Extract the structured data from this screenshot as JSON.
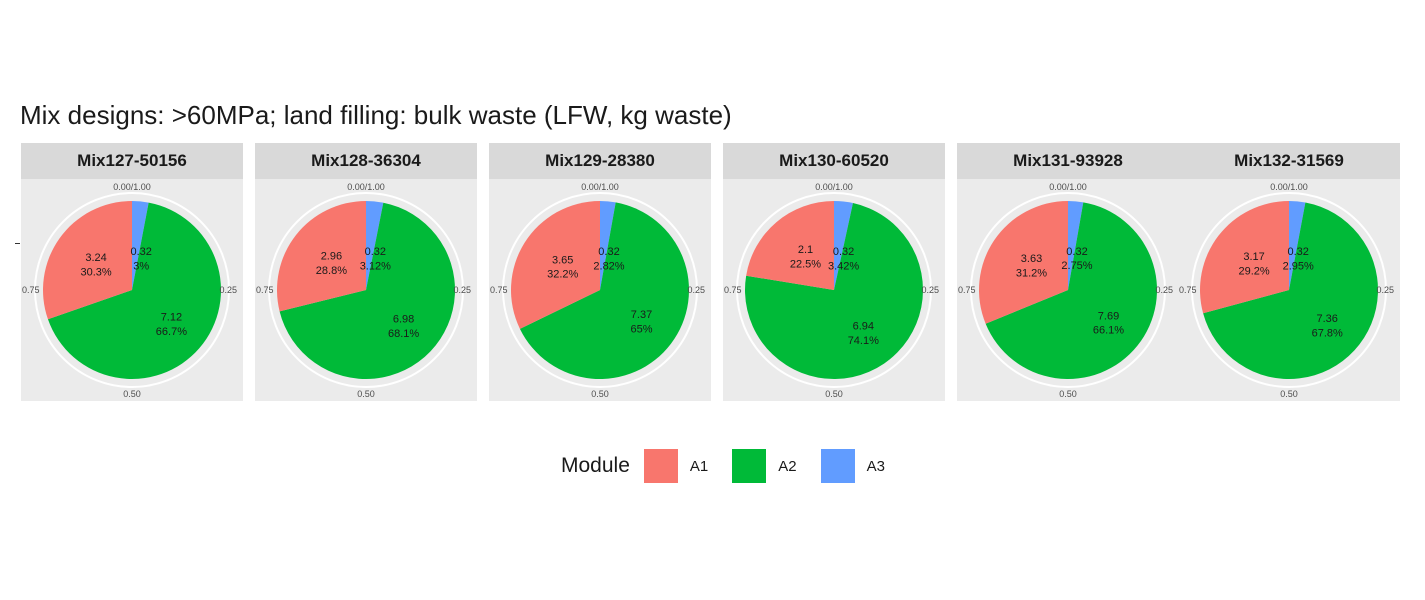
{
  "title": "Mix designs: >60MPa; land filling: bulk waste (LFW, kg waste)",
  "legend": {
    "title": "Module",
    "items": [
      {
        "label": "A1",
        "color": "#F8766D"
      },
      {
        "label": "A2",
        "color": "#00BA38"
      },
      {
        "label": "A3",
        "color": "#619CFF"
      }
    ]
  },
  "chart_data": {
    "type": "pie",
    "theta_ticks": [
      "0.00/1.00",
      "0.25",
      "0.50",
      "0.75"
    ],
    "panel_background": "#EBEBEB",
    "strip_background": "#D9D9D9",
    "facets": [
      {
        "name": "Mix127-50156",
        "slices": [
          {
            "module": "A1",
            "value": 3.24,
            "label_value": "3.24",
            "label_pct": "30.3%"
          },
          {
            "module": "A2",
            "value": 7.12,
            "label_value": "7.12",
            "label_pct": "66.7%"
          },
          {
            "module": "A3",
            "value": 0.32,
            "label_value": "0.32",
            "label_pct": "3%"
          }
        ]
      },
      {
        "name": "Mix128-36304",
        "slices": [
          {
            "module": "A1",
            "value": 2.96,
            "label_value": "2.96",
            "label_pct": "28.8%"
          },
          {
            "module": "A2",
            "value": 6.98,
            "label_value": "6.98",
            "label_pct": "68.1%"
          },
          {
            "module": "A3",
            "value": 0.32,
            "label_value": "0.32",
            "label_pct": "3.12%"
          }
        ]
      },
      {
        "name": "Mix129-28380",
        "slices": [
          {
            "module": "A1",
            "value": 3.65,
            "label_value": "3.65",
            "label_pct": "32.2%"
          },
          {
            "module": "A2",
            "value": 7.37,
            "label_value": "7.37",
            "label_pct": "65%"
          },
          {
            "module": "A3",
            "value": 0.32,
            "label_value": "0.32",
            "label_pct": "2.82%"
          }
        ]
      },
      {
        "name": "Mix130-60520",
        "slices": [
          {
            "module": "A1",
            "value": 2.1,
            "label_value": "2.1",
            "label_pct": "22.5%"
          },
          {
            "module": "A2",
            "value": 6.94,
            "label_value": "6.94",
            "label_pct": "74.1%"
          },
          {
            "module": "A3",
            "value": 0.32,
            "label_value": "0.32",
            "label_pct": "3.42%"
          }
        ]
      },
      {
        "name": "Mix131-93928",
        "slices": [
          {
            "module": "A1",
            "value": 3.63,
            "label_value": "3.63",
            "label_pct": "31.2%"
          },
          {
            "module": "A2",
            "value": 7.69,
            "label_value": "7.69",
            "label_pct": "66.1%"
          },
          {
            "module": "A3",
            "value": 0.32,
            "label_value": "0.32",
            "label_pct": "2.75%"
          }
        ]
      },
      {
        "name": "Mix132-31569",
        "slices": [
          {
            "module": "A1",
            "value": 3.17,
            "label_value": "3.17",
            "label_pct": "29.2%"
          },
          {
            "module": "A2",
            "value": 7.36,
            "label_value": "7.36",
            "label_pct": "67.8%"
          },
          {
            "module": "A3",
            "value": 0.32,
            "label_value": "0.32",
            "label_pct": "2.95%"
          }
        ]
      }
    ]
  }
}
